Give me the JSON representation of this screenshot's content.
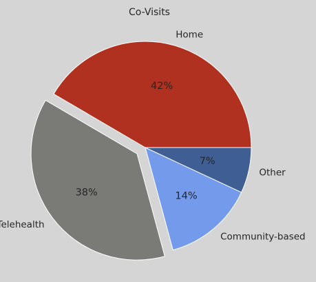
{
  "chart_data": {
    "type": "pie",
    "title": "Co-Visits",
    "slices": [
      {
        "label": "Home",
        "value": 42,
        "pct_label": "42%",
        "color": "#b0311f",
        "explode": false
      },
      {
        "label": "Telehealth",
        "value": 38,
        "pct_label": "38%",
        "color": "#7a7a77",
        "explode": true
      },
      {
        "label": "Community-based",
        "value": 14,
        "pct_label": "14%",
        "color": "#739aeb",
        "explode": false
      },
      {
        "label": "Other",
        "value": 7,
        "pct_label": "7%",
        "color": "#3e5e94",
        "explode": false
      }
    ],
    "start_angle_deg": 0,
    "direction": "counterclockwise",
    "legend": "none"
  }
}
